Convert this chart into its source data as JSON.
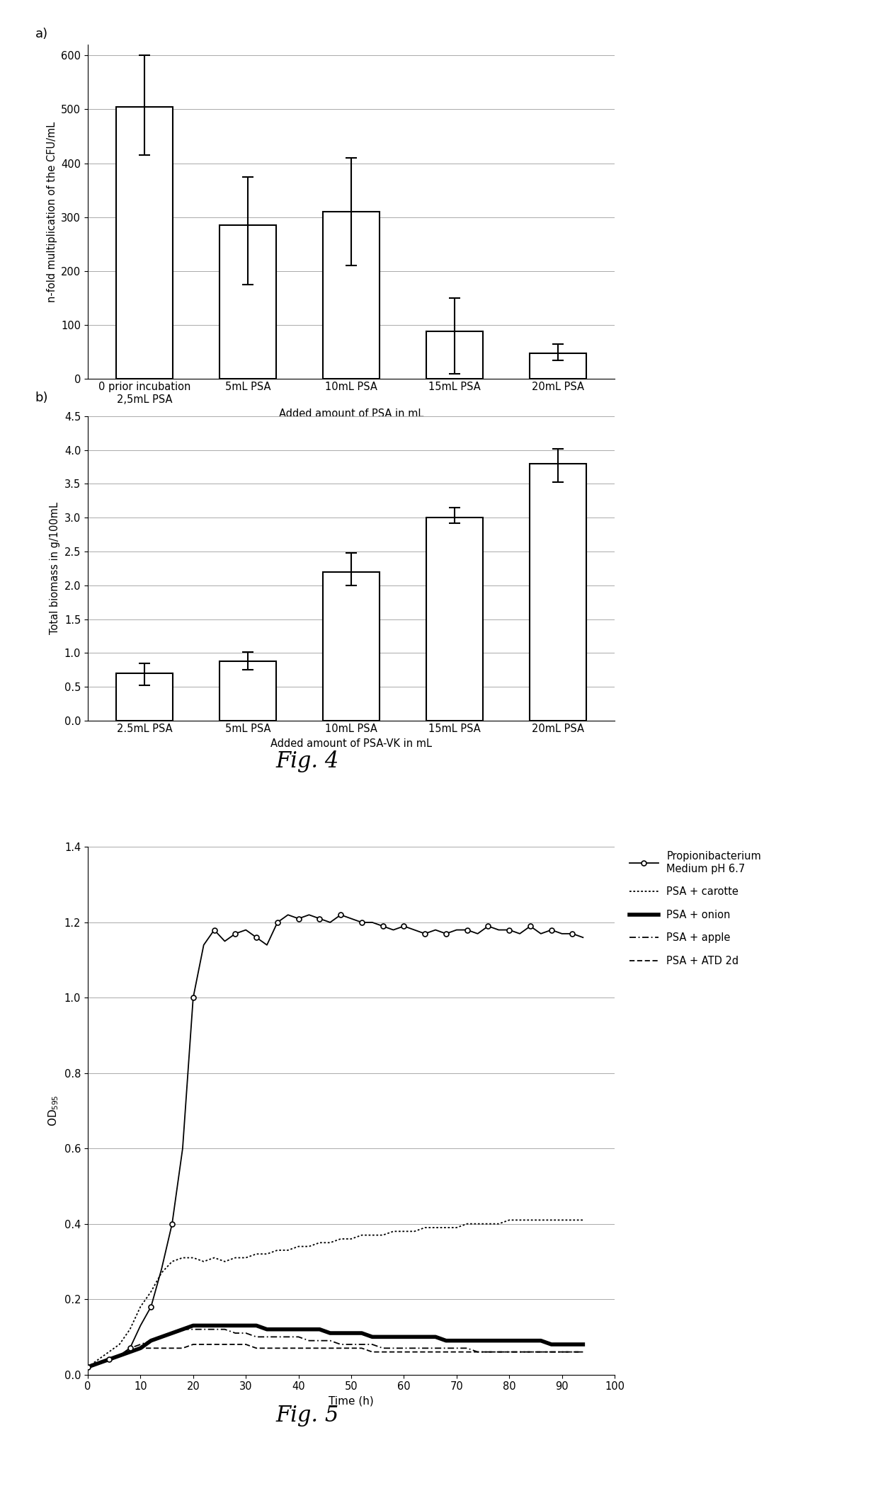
{
  "fig4a": {
    "categories": [
      "0 prior incubation\n2,5mL PSA",
      "5mL PSA",
      "10mL PSA",
      "15mL PSA",
      "20mL PSA"
    ],
    "values": [
      505,
      285,
      310,
      88,
      48
    ],
    "yerr_low": [
      90,
      110,
      100,
      78,
      13
    ],
    "yerr_high": [
      95,
      90,
      100,
      62,
      17
    ],
    "ylabel": "n-fold multiplication of the CFU/mL",
    "xlabel": "Added amount of PSA in mL",
    "ylim": [
      0,
      620
    ],
    "yticks": [
      0,
      100,
      200,
      300,
      400,
      500,
      600
    ],
    "panel_label": "a)"
  },
  "fig4b": {
    "categories": [
      "2.5mL PSA",
      "5mL PSA",
      "10mL PSA",
      "15mL PSA",
      "20mL PSA"
    ],
    "values": [
      0.7,
      0.88,
      2.2,
      3.0,
      3.8
    ],
    "yerr_low": [
      0.18,
      0.13,
      0.2,
      0.08,
      0.28
    ],
    "yerr_high": [
      0.15,
      0.13,
      0.28,
      0.15,
      0.22
    ],
    "ylabel": "Total biomass in g/100mL",
    "xlabel": "Added amount of PSA-VK in mL",
    "ylim": [
      0,
      4.5
    ],
    "yticks": [
      0,
      0.5,
      1,
      1.5,
      2,
      2.5,
      3,
      3.5,
      4,
      4.5
    ],
    "panel_label": "b)"
  },
  "fig5": {
    "propion_x": [
      0,
      2,
      4,
      6,
      8,
      10,
      12,
      14,
      16,
      18,
      20,
      22,
      24,
      26,
      28,
      30,
      32,
      34,
      36,
      38,
      40,
      42,
      44,
      46,
      48,
      50,
      52,
      54,
      56,
      58,
      60,
      62,
      64,
      66,
      68,
      70,
      72,
      74,
      76,
      78,
      80,
      82,
      84,
      86,
      88,
      90,
      92,
      94
    ],
    "propion_y": [
      0.02,
      0.03,
      0.04,
      0.05,
      0.07,
      0.13,
      0.18,
      0.28,
      0.4,
      0.6,
      1.0,
      1.14,
      1.18,
      1.15,
      1.17,
      1.18,
      1.16,
      1.14,
      1.2,
      1.22,
      1.21,
      1.22,
      1.21,
      1.2,
      1.22,
      1.21,
      1.2,
      1.2,
      1.19,
      1.18,
      1.19,
      1.18,
      1.17,
      1.18,
      1.17,
      1.18,
      1.18,
      1.17,
      1.19,
      1.18,
      1.18,
      1.17,
      1.19,
      1.17,
      1.18,
      1.17,
      1.17,
      1.16
    ],
    "carotte_x": [
      0,
      2,
      4,
      6,
      8,
      10,
      12,
      14,
      16,
      18,
      20,
      22,
      24,
      26,
      28,
      30,
      32,
      34,
      36,
      38,
      40,
      42,
      44,
      46,
      48,
      50,
      52,
      54,
      56,
      58,
      60,
      62,
      64,
      66,
      68,
      70,
      72,
      74,
      76,
      78,
      80,
      82,
      84,
      86,
      88,
      90,
      92,
      94
    ],
    "carotte_y": [
      0.02,
      0.04,
      0.06,
      0.08,
      0.12,
      0.18,
      0.22,
      0.27,
      0.3,
      0.31,
      0.31,
      0.3,
      0.31,
      0.3,
      0.31,
      0.31,
      0.32,
      0.32,
      0.33,
      0.33,
      0.34,
      0.34,
      0.35,
      0.35,
      0.36,
      0.36,
      0.37,
      0.37,
      0.37,
      0.38,
      0.38,
      0.38,
      0.39,
      0.39,
      0.39,
      0.39,
      0.4,
      0.4,
      0.4,
      0.4,
      0.41,
      0.41,
      0.41,
      0.41,
      0.41,
      0.41,
      0.41,
      0.41
    ],
    "onion_x": [
      0,
      2,
      4,
      6,
      8,
      10,
      12,
      14,
      16,
      18,
      20,
      22,
      24,
      26,
      28,
      30,
      32,
      34,
      36,
      38,
      40,
      42,
      44,
      46,
      48,
      50,
      52,
      54,
      56,
      58,
      60,
      62,
      64,
      66,
      68,
      70,
      72,
      74,
      76,
      78,
      80,
      82,
      84,
      86,
      88,
      90,
      92,
      94
    ],
    "onion_y": [
      0.02,
      0.03,
      0.04,
      0.05,
      0.06,
      0.07,
      0.09,
      0.1,
      0.11,
      0.12,
      0.13,
      0.13,
      0.13,
      0.13,
      0.13,
      0.13,
      0.13,
      0.12,
      0.12,
      0.12,
      0.12,
      0.12,
      0.12,
      0.11,
      0.11,
      0.11,
      0.11,
      0.1,
      0.1,
      0.1,
      0.1,
      0.1,
      0.1,
      0.1,
      0.09,
      0.09,
      0.09,
      0.09,
      0.09,
      0.09,
      0.09,
      0.09,
      0.09,
      0.09,
      0.08,
      0.08,
      0.08,
      0.08
    ],
    "apple_x": [
      0,
      2,
      4,
      6,
      8,
      10,
      12,
      14,
      16,
      18,
      20,
      22,
      24,
      26,
      28,
      30,
      32,
      34,
      36,
      38,
      40,
      42,
      44,
      46,
      48,
      50,
      52,
      54,
      56,
      58,
      60,
      62,
      64,
      66,
      68,
      70,
      72,
      74,
      76,
      78,
      80,
      82,
      84,
      86,
      88,
      90,
      92,
      94
    ],
    "apple_y": [
      0.02,
      0.03,
      0.04,
      0.05,
      0.07,
      0.08,
      0.09,
      0.1,
      0.11,
      0.12,
      0.12,
      0.12,
      0.12,
      0.12,
      0.11,
      0.11,
      0.1,
      0.1,
      0.1,
      0.1,
      0.1,
      0.09,
      0.09,
      0.09,
      0.08,
      0.08,
      0.08,
      0.08,
      0.07,
      0.07,
      0.07,
      0.07,
      0.07,
      0.07,
      0.07,
      0.07,
      0.07,
      0.06,
      0.06,
      0.06,
      0.06,
      0.06,
      0.06,
      0.06,
      0.06,
      0.06,
      0.06,
      0.06
    ],
    "atd_x": [
      0,
      2,
      4,
      6,
      8,
      10,
      12,
      14,
      16,
      18,
      20,
      22,
      24,
      26,
      28,
      30,
      32,
      34,
      36,
      38,
      40,
      42,
      44,
      46,
      48,
      50,
      52,
      54,
      56,
      58,
      60,
      62,
      64,
      66,
      68,
      70,
      72,
      74,
      76,
      78,
      80,
      82,
      84,
      86,
      88,
      90,
      92,
      94
    ],
    "atd_y": [
      0.02,
      0.03,
      0.04,
      0.05,
      0.06,
      0.07,
      0.07,
      0.07,
      0.07,
      0.07,
      0.08,
      0.08,
      0.08,
      0.08,
      0.08,
      0.08,
      0.07,
      0.07,
      0.07,
      0.07,
      0.07,
      0.07,
      0.07,
      0.07,
      0.07,
      0.07,
      0.07,
      0.06,
      0.06,
      0.06,
      0.06,
      0.06,
      0.06,
      0.06,
      0.06,
      0.06,
      0.06,
      0.06,
      0.06,
      0.06,
      0.06,
      0.06,
      0.06,
      0.06,
      0.06,
      0.06,
      0.06,
      0.06
    ],
    "ylabel": "OD$_{595}$",
    "xlabel": "Time (h)",
    "ylim": [
      0,
      1.4
    ],
    "yticks": [
      0,
      0.2,
      0.4,
      0.6,
      0.8,
      1.0,
      1.2,
      1.4
    ],
    "xlim": [
      0,
      96
    ],
    "xticks": [
      0,
      10,
      20,
      30,
      40,
      50,
      60,
      70,
      80,
      90,
      100
    ],
    "fig_label": "Fig. 5",
    "legend_labels": [
      "Propionibacterium\nMedium pH 6.7",
      "PSA + carotte",
      "PSA + onion",
      "PSA + apple",
      "PSA + ATD 2d"
    ]
  },
  "fig4_label": "Fig. 4",
  "background_color": "#ffffff",
  "bar_color": "#ffffff",
  "bar_edgecolor": "#000000",
  "ecolor": "#000000"
}
